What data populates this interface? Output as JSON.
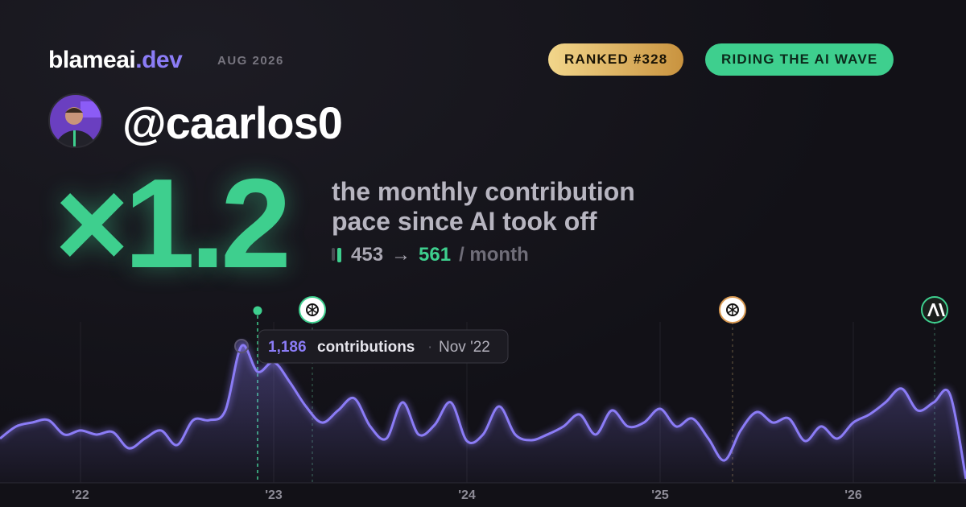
{
  "header": {
    "brand": "blameai",
    "brand_tld": ".dev",
    "period": "AUG 2026",
    "badges": [
      "RANKED #328",
      "RIDING THE AI WAVE"
    ],
    "handle": "@caarlos0"
  },
  "hero": {
    "multiplier": "×1.2",
    "description": "the monthly contribution pace since AI took off",
    "before": 453,
    "arrow": "→",
    "after": 561,
    "unit": "/ month"
  },
  "chart_data": {
    "type": "line",
    "color": "#8b7cf6",
    "categories": [
      null,
      null,
      null,
      null,
      null,
      "'22",
      null,
      null,
      null,
      null,
      null,
      null,
      null,
      null,
      null,
      null,
      null,
      "'23",
      null,
      null,
      null,
      null,
      null,
      null,
      null,
      null,
      null,
      null,
      null,
      "'24",
      null,
      null,
      null,
      null,
      null,
      null,
      null,
      null,
      null,
      null,
      null,
      "'25",
      null,
      null,
      null,
      null,
      null,
      null,
      null,
      null,
      null,
      null,
      null,
      "'26",
      null,
      null,
      null,
      null,
      null,
      null,
      null
    ],
    "values": [
      384,
      489,
      523,
      544,
      419,
      454,
      419,
      440,
      300,
      384,
      454,
      328,
      544,
      544,
      628,
      1186,
      963,
      1047,
      873,
      663,
      523,
      628,
      733,
      489,
      384,
      698,
      419,
      503,
      698,
      363,
      419,
      663,
      419,
      370,
      419,
      489,
      593,
      419,
      628,
      489,
      523,
      642,
      489,
      558,
      384,
      195,
      454,
      614,
      523,
      558,
      363,
      489,
      384,
      523,
      593,
      698,
      817,
      628,
      698,
      768,
      35
    ],
    "tooltip": {
      "label": "1,186",
      "text": "contributions",
      "date": "Nov '22"
    }
  }
}
